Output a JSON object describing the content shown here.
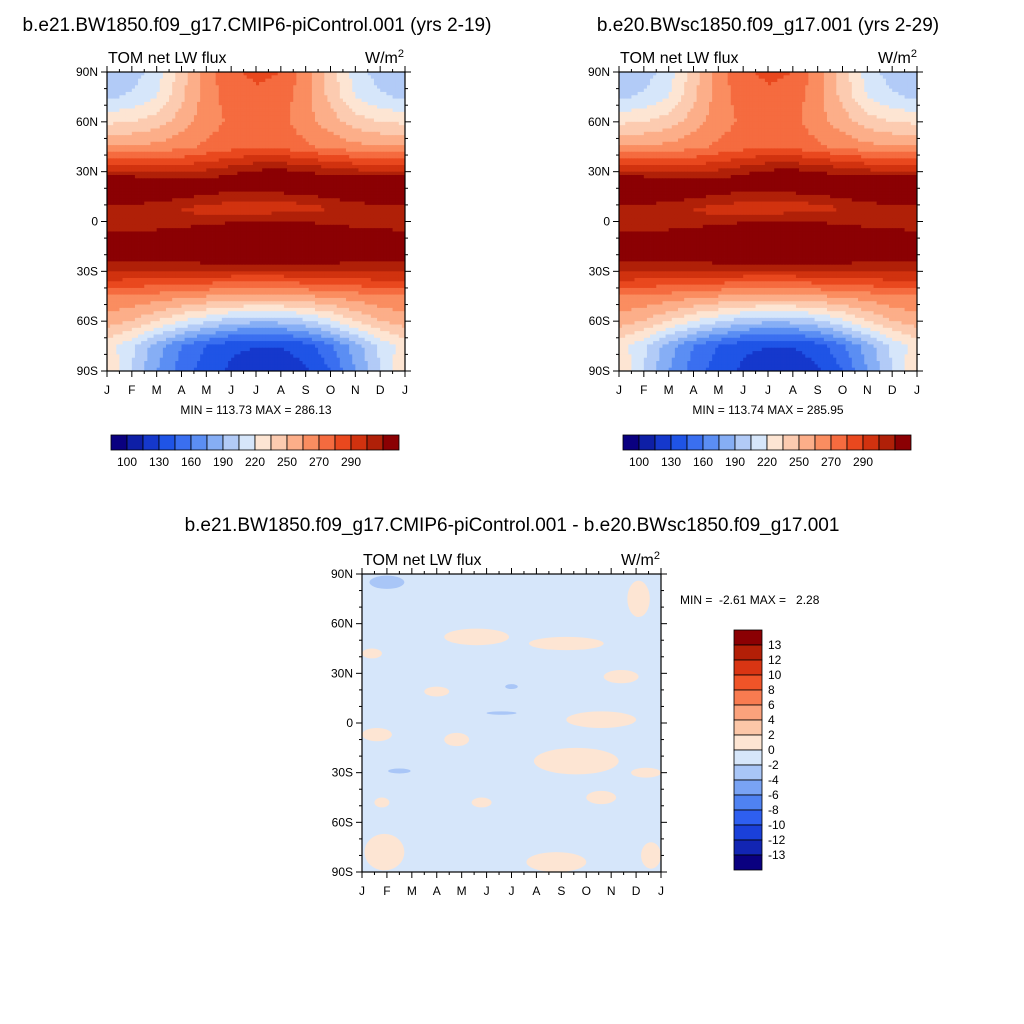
{
  "chart_data": [
    {
      "type": "heatmap",
      "title": "b.e21.BW1850.f09_g17.CMIP6-piControl.001 (yrs 2-19)",
      "subtitle": "TOM net LW flux",
      "units": "W/m",
      "units_sup": "2",
      "x_ticks": [
        "J",
        "F",
        "M",
        "A",
        "M",
        "J",
        "J",
        "A",
        "S",
        "O",
        "N",
        "D",
        "J"
      ],
      "y_ticks": [
        "90N",
        "60N",
        "30N",
        "0",
        "30S",
        "60S",
        "90S"
      ],
      "ylim": [
        -90,
        90
      ],
      "stats": "MIN = 113.73 MAX = 286.13",
      "min": 113.73,
      "max": 286.13,
      "colorbar_labels": [
        "100",
        "130",
        "160",
        "190",
        "220",
        "250",
        "270",
        "290"
      ],
      "months": [
        "J",
        "F",
        "M",
        "A",
        "M",
        "J",
        "J",
        "A",
        "S",
        "O",
        "N",
        "D",
        "J"
      ],
      "lats": [
        90,
        75,
        60,
        45,
        30,
        22,
        15,
        8,
        0,
        -8,
        -15,
        -22,
        -30,
        -45,
        -60,
        -75,
        -90
      ],
      "values": [
        [
          160,
          165,
          175,
          195,
          215,
          228,
          232,
          230,
          215,
          195,
          175,
          165,
          160
        ],
        [
          168,
          172,
          180,
          198,
          215,
          225,
          228,
          226,
          213,
          197,
          180,
          172,
          168
        ],
        [
          188,
          190,
          195,
          205,
          215,
          222,
          224,
          223,
          214,
          205,
          195,
          190,
          188
        ],
        [
          210,
          211,
          213,
          217,
          222,
          226,
          228,
          227,
          222,
          217,
          213,
          211,
          210
        ],
        [
          250,
          248,
          247,
          248,
          252,
          257,
          262,
          263,
          260,
          256,
          253,
          251,
          250
        ],
        [
          278,
          281,
          276,
          268,
          268,
          270,
          272,
          272,
          270,
          268,
          273,
          277,
          278
        ],
        [
          272,
          270,
          267,
          262,
          258,
          255,
          255,
          255,
          258,
          262,
          266,
          270,
          272
        ],
        [
          258,
          255,
          252,
          250,
          247,
          244,
          243,
          243,
          246,
          250,
          253,
          256,
          258
        ],
        [
          255,
          252,
          250,
          251,
          254,
          258,
          261,
          262,
          259,
          255,
          254,
          255,
          255
        ],
        [
          262,
          262,
          266,
          272,
          276,
          280,
          282,
          282,
          279,
          274,
          268,
          264,
          262
        ],
        [
          262,
          265,
          269,
          274,
          280,
          285,
          287,
          286,
          283,
          276,
          270,
          265,
          262
        ],
        [
          262,
          262,
          263,
          265,
          268,
          270,
          271,
          271,
          270,
          267,
          264,
          262,
          262
        ],
        [
          252,
          250,
          249,
          248,
          248,
          248,
          248,
          248,
          249,
          250,
          251,
          252,
          252
        ],
        [
          220,
          218,
          216,
          213,
          210,
          208,
          207,
          207,
          209,
          212,
          215,
          218,
          220
        ],
        [
          205,
          200,
          190,
          180,
          172,
          165,
          162,
          163,
          168,
          178,
          190,
          200,
          205
        ],
        [
          185,
          172,
          155,
          140,
          130,
          122,
          120,
          120,
          125,
          138,
          155,
          172,
          185
        ],
        [
          190,
          170,
          150,
          135,
          125,
          118,
          115,
          114,
          118,
          130,
          150,
          170,
          190
        ]
      ],
      "levels": [
        100,
        110,
        120,
        130,
        140,
        150,
        160,
        170,
        180,
        190,
        200,
        210,
        220,
        230,
        240,
        250,
        260,
        270,
        280,
        290
      ],
      "colors": [
        "#0a0080",
        "#0e1fa6",
        "#1538cc",
        "#1f54e6",
        "#3a6ff0",
        "#5b8ef3",
        "#86aef5",
        "#b2cbf7",
        "#d6e6fa",
        "#fde5d3",
        "#fccbb0",
        "#fcae89",
        "#fa8d60",
        "#f56b3f",
        "#e9481e",
        "#d1320f",
        "#b02008",
        "#8b0003"
      ]
    },
    {
      "type": "heatmap",
      "title": "b.e20.BWsc1850.f09_g17.001 (yrs 2-29)",
      "subtitle": "TOM net LW flux",
      "units": "W/m",
      "units_sup": "2",
      "x_ticks": [
        "J",
        "F",
        "M",
        "A",
        "M",
        "J",
        "J",
        "A",
        "S",
        "O",
        "N",
        "D",
        "J"
      ],
      "y_ticks": [
        "90N",
        "60N",
        "30N",
        "0",
        "30S",
        "60S",
        "90S"
      ],
      "ylim": [
        -90,
        90
      ],
      "stats": "MIN = 113.74 MAX = 285.95",
      "min": 113.74,
      "max": 285.95,
      "colorbar_labels": [
        "100",
        "130",
        "160",
        "190",
        "220",
        "250",
        "270",
        "290"
      ],
      "months": [
        "J",
        "F",
        "M",
        "A",
        "M",
        "J",
        "J",
        "A",
        "S",
        "O",
        "N",
        "D",
        "J"
      ],
      "lats": [
        90,
        75,
        60,
        45,
        30,
        22,
        15,
        8,
        0,
        -8,
        -15,
        -22,
        -30,
        -45,
        -60,
        -75,
        -90
      ],
      "values": [
        [
          160,
          165,
          175,
          195,
          215,
          228,
          232,
          230,
          215,
          195,
          175,
          165,
          160
        ],
        [
          168,
          172,
          180,
          198,
          215,
          225,
          228,
          226,
          213,
          197,
          180,
          172,
          168
        ],
        [
          188,
          190,
          195,
          205,
          215,
          222,
          224,
          223,
          214,
          205,
          195,
          190,
          188
        ],
        [
          210,
          211,
          213,
          217,
          222,
          226,
          228,
          227,
          222,
          217,
          213,
          211,
          210
        ],
        [
          250,
          248,
          247,
          248,
          252,
          257,
          262,
          263,
          260,
          256,
          253,
          251,
          250
        ],
        [
          278,
          280,
          276,
          268,
          268,
          270,
          272,
          272,
          270,
          268,
          273,
          277,
          278
        ],
        [
          272,
          270,
          267,
          262,
          258,
          255,
          255,
          255,
          258,
          262,
          266,
          270,
          272
        ],
        [
          258,
          255,
          252,
          250,
          247,
          244,
          243,
          243,
          246,
          250,
          253,
          256,
          258
        ],
        [
          255,
          252,
          250,
          251,
          254,
          258,
          261,
          262,
          259,
          255,
          254,
          255,
          255
        ],
        [
          262,
          262,
          266,
          272,
          276,
          280,
          282,
          282,
          279,
          274,
          268,
          264,
          262
        ],
        [
          262,
          265,
          269,
          274,
          280,
          284,
          286,
          286,
          283,
          276,
          270,
          265,
          262
        ],
        [
          262,
          262,
          263,
          265,
          268,
          270,
          271,
          271,
          270,
          267,
          264,
          262,
          262
        ],
        [
          252,
          250,
          249,
          248,
          248,
          248,
          248,
          248,
          249,
          250,
          251,
          252,
          252
        ],
        [
          220,
          218,
          216,
          213,
          210,
          208,
          207,
          207,
          209,
          212,
          215,
          218,
          220
        ],
        [
          205,
          200,
          190,
          180,
          172,
          165,
          162,
          163,
          168,
          178,
          190,
          200,
          205
        ],
        [
          185,
          172,
          155,
          140,
          130,
          122,
          120,
          120,
          125,
          138,
          155,
          172,
          185
        ],
        [
          190,
          170,
          150,
          135,
          125,
          118,
          115,
          114,
          118,
          130,
          150,
          170,
          190
        ]
      ],
      "levels": [
        100,
        110,
        120,
        130,
        140,
        150,
        160,
        170,
        180,
        190,
        200,
        210,
        220,
        230,
        240,
        250,
        260,
        270,
        280,
        290
      ],
      "colors": [
        "#0a0080",
        "#0e1fa6",
        "#1538cc",
        "#1f54e6",
        "#3a6ff0",
        "#5b8ef3",
        "#86aef5",
        "#b2cbf7",
        "#d6e6fa",
        "#fde5d3",
        "#fccbb0",
        "#fcae89",
        "#fa8d60",
        "#f56b3f",
        "#e9481e",
        "#d1320f",
        "#b02008",
        "#8b0003"
      ]
    },
    {
      "type": "heatmap",
      "title": "b.e21.BW1850.f09_g17.CMIP6-piControl.001 - b.e20.BWsc1850.f09_g17.001",
      "subtitle": "TOM net LW flux",
      "units": "W/m",
      "units_sup": "2",
      "x_ticks": [
        "J",
        "F",
        "M",
        "A",
        "M",
        "J",
        "J",
        "A",
        "S",
        "O",
        "N",
        "D",
        "J"
      ],
      "y_ticks": [
        "90N",
        "60N",
        "30N",
        "0",
        "30S",
        "60S",
        "90S"
      ],
      "ylim": [
        -90,
        90
      ],
      "stats": "MIN =  -2.61 MAX =   2.28",
      "min": -2.61,
      "max": 2.28,
      "colorbar_labels": [
        "13",
        "12",
        "10",
        "8",
        "6",
        "4",
        "2",
        "0",
        "-2",
        "-4",
        "-6",
        "-8",
        "-10",
        "-12",
        "-13"
      ],
      "background_level": "-2 to 0",
      "positive_patches_level": "0 to 2",
      "patches": [
        {
          "month": 11.1,
          "lat": 75,
          "w_months": 0.9,
          "h_deg": 22
        },
        {
          "month": 4.6,
          "lat": 52,
          "w_months": 2.6,
          "h_deg": 10
        },
        {
          "month": 8.2,
          "lat": 48,
          "w_months": 3.0,
          "h_deg": 8
        },
        {
          "month": 0.4,
          "lat": 42,
          "w_months": 0.8,
          "h_deg": 6
        },
        {
          "month": 10.4,
          "lat": 28,
          "w_months": 1.4,
          "h_deg": 8
        },
        {
          "month": 3.0,
          "lat": 19,
          "w_months": 1.0,
          "h_deg": 6
        },
        {
          "month": 9.6,
          "lat": 2,
          "w_months": 2.8,
          "h_deg": 10
        },
        {
          "month": 0.6,
          "lat": -7,
          "w_months": 1.2,
          "h_deg": 8
        },
        {
          "month": 3.8,
          "lat": -10,
          "w_months": 1.0,
          "h_deg": 8
        },
        {
          "month": 8.6,
          "lat": -23,
          "w_months": 3.4,
          "h_deg": 16
        },
        {
          "month": 11.4,
          "lat": -30,
          "w_months": 1.2,
          "h_deg": 6
        },
        {
          "month": 9.6,
          "lat": -45,
          "w_months": 1.2,
          "h_deg": 8
        },
        {
          "month": 4.8,
          "lat": -48,
          "w_months": 0.8,
          "h_deg": 6
        },
        {
          "month": 0.8,
          "lat": -48,
          "w_months": 0.6,
          "h_deg": 6
        },
        {
          "month": 0.9,
          "lat": -78,
          "w_months": 1.6,
          "h_deg": 22
        },
        {
          "month": 7.8,
          "lat": -84,
          "w_months": 2.4,
          "h_deg": 12
        },
        {
          "month": 11.6,
          "lat": -80,
          "w_months": 0.8,
          "h_deg": 16
        }
      ],
      "negative_patches": [
        {
          "month": 1.0,
          "lat": 85,
          "w_months": 1.4,
          "h_deg": 8
        },
        {
          "month": 6.0,
          "lat": 22,
          "w_months": 0.5,
          "h_deg": 3
        },
        {
          "month": 5.6,
          "lat": 6,
          "w_months": 1.2,
          "h_deg": 2
        },
        {
          "month": 1.5,
          "lat": -29,
          "w_months": 0.9,
          "h_deg": 3
        }
      ],
      "levels": [
        -13,
        -12,
        -10,
        -8,
        -6,
        -4,
        -2,
        0,
        2,
        4,
        6,
        8,
        10,
        12,
        13
      ],
      "colors": [
        "#0a0080",
        "#1225b3",
        "#1a40d9",
        "#2e5ff0",
        "#4f82f2",
        "#79a3f4",
        "#a9c6f7",
        "#d6e6fa",
        "#fde5d3",
        "#fcc7a8",
        "#fba27c",
        "#f87b50",
        "#ef5428",
        "#d93513",
        "#b31f07",
        "#8b0003"
      ]
    }
  ]
}
